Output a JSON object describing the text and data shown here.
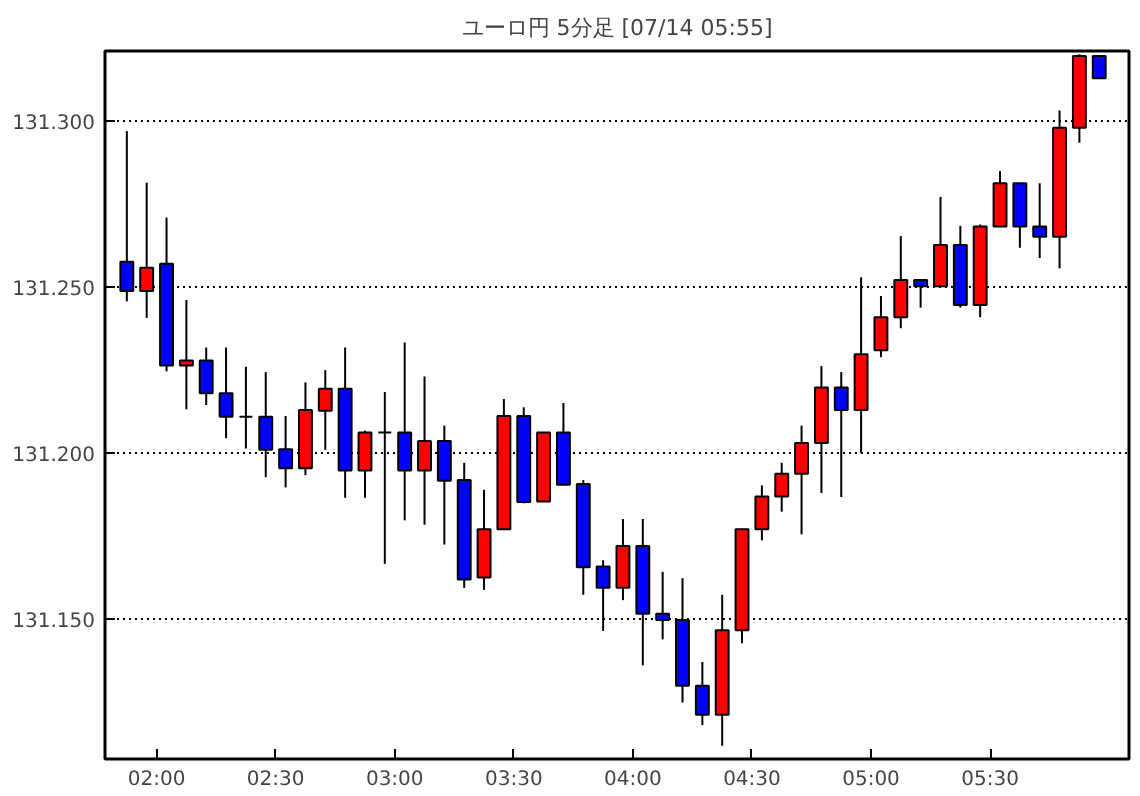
{
  "chart_data": {
    "type": "candlestick",
    "title": "ユーロ円 5分足 [07/14 05:55]",
    "x": [
      1.875,
      1.9583,
      2.0417,
      2.125,
      2.2083,
      2.2917,
      2.375,
      2.4583,
      2.5417,
      2.625,
      2.7083,
      2.7917,
      2.875,
      2.9583,
      3.0417,
      3.125,
      3.2083,
      3.2917,
      3.375,
      3.4583,
      3.5417,
      3.625,
      3.7083,
      3.7917,
      3.875,
      3.9583,
      4.0417,
      4.125,
      4.2083,
      4.2917,
      4.375,
      4.4583,
      4.5417,
      4.625,
      4.7083,
      4.7917,
      4.875,
      4.9583,
      5.0417,
      5.125,
      5.2083,
      5.2917,
      5.375,
      5.4583,
      5.5417,
      5.625,
      5.7083,
      5.7917,
      5.875,
      5.9583
    ],
    "ohlc": [
      [
        131.2576,
        131.2969,
        131.2457,
        131.2488
      ],
      [
        131.2488,
        131.2814,
        131.2407,
        131.2558
      ],
      [
        131.257,
        131.2709,
        131.2246,
        131.2264
      ],
      [
        131.2264,
        131.2461,
        131.2132,
        131.2279
      ],
      [
        131.2279,
        131.2318,
        131.2145,
        131.218
      ],
      [
        131.218,
        131.2318,
        131.2045,
        131.211
      ],
      [
        131.211,
        131.226,
        131.2014,
        131.211
      ],
      [
        131.211,
        131.2244,
        131.1928,
        131.201
      ],
      [
        131.2012,
        131.2112,
        131.1897,
        131.1955
      ],
      [
        131.1955,
        131.2213,
        131.1934,
        131.213
      ],
      [
        131.2128,
        131.225,
        131.201,
        131.2194
      ],
      [
        131.2194,
        131.2318,
        131.1866,
        131.1948
      ],
      [
        131.1948,
        131.2068,
        131.1866,
        131.2062
      ],
      [
        131.2062,
        131.2184,
        131.1667,
        131.2062
      ],
      [
        131.2062,
        131.2333,
        131.1798,
        131.1948
      ],
      [
        131.1948,
        131.2231,
        131.1785,
        131.2037
      ],
      [
        131.2037,
        131.2083,
        131.1725,
        131.1917
      ],
      [
        131.1919,
        131.1971,
        131.1595,
        131.162
      ],
      [
        131.1626,
        131.189,
        131.1589,
        131.1771
      ],
      [
        131.1771,
        131.2163,
        131.1771,
        131.2112
      ],
      [
        131.2112,
        131.2138,
        131.1849,
        131.1853
      ],
      [
        131.1855,
        131.2062,
        131.1855,
        131.2062
      ],
      [
        131.2062,
        131.2151,
        131.1905,
        131.1905
      ],
      [
        131.1907,
        131.1919,
        131.1574,
        131.1657
      ],
      [
        131.1659,
        131.1678,
        131.1465,
        131.1595
      ],
      [
        131.1595,
        131.1802,
        131.1558,
        131.1721
      ],
      [
        131.1721,
        131.1802,
        131.1362,
        131.1517
      ],
      [
        131.1517,
        131.1643,
        131.144,
        131.1498
      ],
      [
        131.1498,
        131.1624,
        131.125,
        131.13
      ],
      [
        131.13,
        131.1372,
        131.1182,
        131.1213
      ],
      [
        131.1213,
        131.1574,
        131.112,
        131.1467
      ],
      [
        131.1467,
        131.1771,
        131.1428,
        131.1771
      ],
      [
        131.1771,
        131.1903,
        131.1738,
        131.187
      ],
      [
        131.187,
        131.1971,
        131.1824,
        131.1938
      ],
      [
        131.1938,
        131.2083,
        131.1756,
        131.2031
      ],
      [
        131.2031,
        131.2262,
        131.188,
        131.2198
      ],
      [
        131.2198,
        131.2244,
        131.1868,
        131.213
      ],
      [
        131.213,
        131.2529,
        131.2,
        131.2298
      ],
      [
        131.231,
        131.2473,
        131.2289,
        131.2409
      ],
      [
        131.2409,
        131.2653,
        131.2376,
        131.2521
      ],
      [
        131.2521,
        131.2521,
        131.2438,
        131.2502
      ],
      [
        131.2502,
        131.2771,
        131.2502,
        131.2626
      ],
      [
        131.2626,
        131.2684,
        131.2438,
        131.2446
      ],
      [
        131.2446,
        131.2688,
        131.2409,
        131.2682
      ],
      [
        131.2682,
        131.2849,
        131.2682,
        131.2812
      ],
      [
        131.2812,
        131.2812,
        131.2618,
        131.2682
      ],
      [
        131.2682,
        131.2812,
        131.2587,
        131.2651
      ],
      [
        131.2651,
        131.3031,
        131.2556,
        131.2979
      ],
      [
        131.2979,
        131.32,
        131.2934,
        131.3195
      ],
      [
        131.3195,
        131.3195,
        131.3128,
        131.3128
      ]
    ],
    "colors": [
      "#0000ff",
      "#ff0000",
      "#0000ff",
      "#ff0000",
      "#0000ff",
      "#0000ff",
      "#000000",
      "#0000ff",
      "#0000ff",
      "#ff0000",
      "#ff0000",
      "#0000ff",
      "#ff0000",
      "#000000",
      "#0000ff",
      "#ff0000",
      "#0000ff",
      "#0000ff",
      "#ff0000",
      "#ff0000",
      "#0000ff",
      "#ff0000",
      "#0000ff",
      "#0000ff",
      "#0000ff",
      "#ff0000",
      "#0000ff",
      "#0000ff",
      "#0000ff",
      "#0000ff",
      "#ff0000",
      "#ff0000",
      "#ff0000",
      "#ff0000",
      "#ff0000",
      "#ff0000",
      "#0000ff",
      "#ff0000",
      "#ff0000",
      "#ff0000",
      "#0000ff",
      "#ff0000",
      "#0000ff",
      "#ff0000",
      "#ff0000",
      "#0000ff",
      "#0000ff",
      "#ff0000",
      "#ff0000",
      "#0000ff"
    ],
    "xlim": [
      1.7833,
      6.0833
    ],
    "ylim": [
      131.108,
      131.321
    ],
    "xticks": [
      {
        "value": 2,
        "label": "02:00"
      },
      {
        "value": 2.5,
        "label": "02:30"
      },
      {
        "value": 3,
        "label": "03:00"
      },
      {
        "value": 3.5,
        "label": "03:30"
      },
      {
        "value": 4,
        "label": "04:00"
      },
      {
        "value": 4.5,
        "label": "04:30"
      },
      {
        "value": 5,
        "label": "05:00"
      },
      {
        "value": 5.5,
        "label": "05:30"
      }
    ],
    "yticks": [
      {
        "value": 131.15,
        "label": "131.150"
      },
      {
        "value": 131.2,
        "label": "131.200"
      },
      {
        "value": 131.25,
        "label": "131.250"
      },
      {
        "value": 131.3,
        "label": "131.300"
      }
    ],
    "grid": "y"
  }
}
